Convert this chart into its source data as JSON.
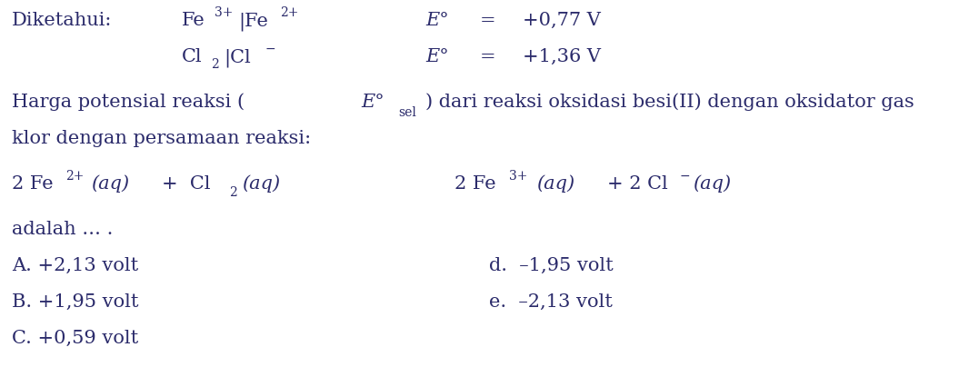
{
  "background_color": "#ffffff",
  "font_color": "#2b2b6b",
  "font_size_main": 15.0,
  "font_size_super": 10.0,
  "font_size_sub": 10.0,
  "figsize": [
    10.77,
    4.04
  ],
  "dpi": 100,
  "line1_label": "Diketahui:",
  "line1_fe": "Fe",
  "line1_fe_sup1": "3+",
  "line1_sep": "|Fe",
  "line1_fe_sup2": "2+",
  "line1_Eo": "E°",
  "line1_eq": "=",
  "line1_val": "+0,77 V",
  "line2_cl": "Cl",
  "line2_sub": "2",
  "line2_sep": "|Cl",
  "line2_sup": "−",
  "line2_Eo": "E°",
  "line2_eq": "=",
  "line2_val": "+1,36 V",
  "para1a": "Harga potensial reaksi (",
  "para1b": "E°",
  "para1c": "sel",
  "para1d": ") dari reaksi oksidasi besi(II) dengan oksidator gas",
  "para2": "klor dengan persamaan reaksi:",
  "eq_left1": "2 Fe",
  "eq_left1_sup": "2+",
  "eq_left1_aq": "(aq)",
  "eq_left2": "+  Cl",
  "eq_left2_sub": "2",
  "eq_left2_aq": "(aq)",
  "eq_gap": "              ",
  "eq_right1": "2 Fe",
  "eq_right1_sup": "3+",
  "eq_right1_aq": "(aq)",
  "eq_right2": "+ 2 Cl",
  "eq_right2_sup": "−",
  "eq_right2_aq": "(aq)",
  "adalah": "adalah … .",
  "ans_A": "A. +2,13 volt",
  "ans_B": "B. +1,95 volt",
  "ans_C": "C. +0,59 volt",
  "ans_d": "d.  –1,95 volt",
  "ans_e": "e.  –2,13 volt"
}
